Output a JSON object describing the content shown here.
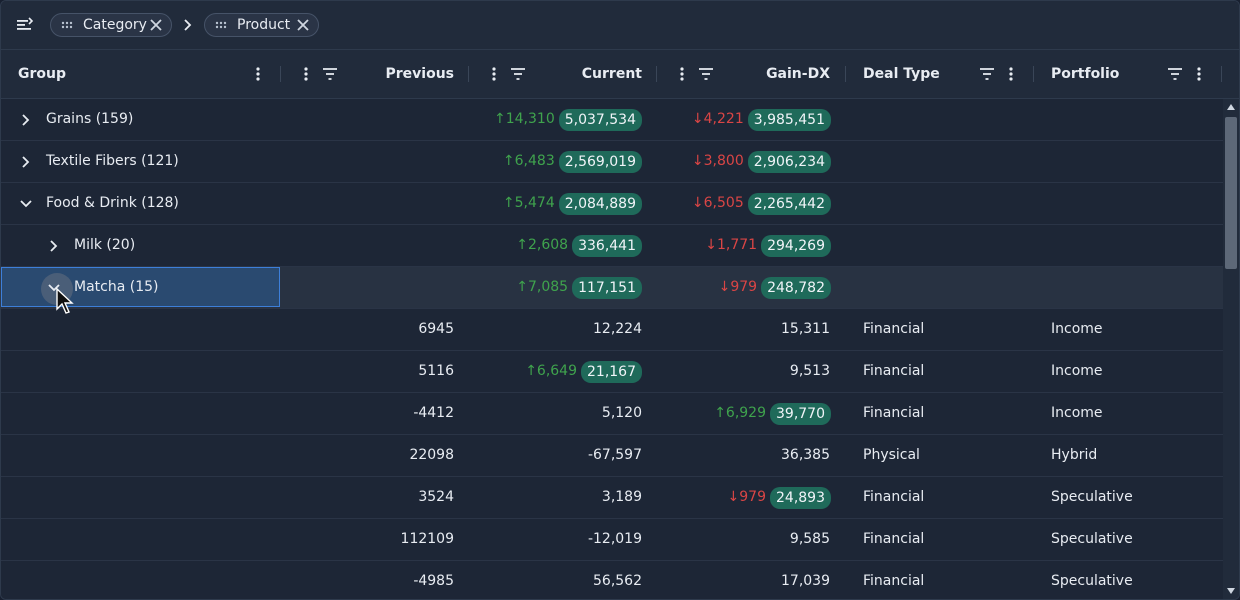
{
  "toolbar": {
    "menu_icon": "group-panel-icon",
    "chips": [
      {
        "label": "Category"
      },
      {
        "label": "Product"
      }
    ]
  },
  "columns": {
    "group": "Group",
    "previous": "Previous",
    "current": "Current",
    "gain": "Gain-DX",
    "deal_type": "Deal Type",
    "portfolio": "Portfolio"
  },
  "group_rows": [
    {
      "label": "Grains (159)",
      "expanded": false,
      "level": 0,
      "cur_delta": "↑14,310",
      "cur_value": "5,037,534",
      "gain_delta": "↓4,221",
      "gain_value": "3,985,451"
    },
    {
      "label": "Textile Fibers (121)",
      "expanded": false,
      "level": 0,
      "cur_delta": "↑6,483",
      "cur_value": "2,569,019",
      "gain_delta": "↓3,800",
      "gain_value": "2,906,234"
    },
    {
      "label": "Food & Drink (128)",
      "expanded": true,
      "level": 0,
      "cur_delta": "↑5,474",
      "cur_value": "2,084,889",
      "gain_delta": "↓6,505",
      "gain_value": "2,265,442"
    },
    {
      "label": "Milk (20)",
      "expanded": false,
      "level": 1,
      "cur_delta": "↑2,608",
      "cur_value": "336,441",
      "gain_delta": "↓1,771",
      "gain_value": "294,269"
    },
    {
      "label": "Matcha (15)",
      "expanded": true,
      "level": 1,
      "cur_delta": "↑7,085",
      "cur_value": "117,151",
      "gain_delta": "↓979",
      "gain_value": "248,782"
    }
  ],
  "leaf_rows": [
    {
      "previous": "6945",
      "cur_delta": "",
      "current": "12,224",
      "gain_delta": "",
      "gain": "15,311",
      "deal_type": "Financial",
      "portfolio": "Income"
    },
    {
      "previous": "5116",
      "cur_delta": "↑6,649",
      "current": "21,167",
      "gain_delta": "",
      "gain": "9,513",
      "deal_type": "Financial",
      "portfolio": "Income"
    },
    {
      "previous": "-4412",
      "cur_delta": "",
      "current": "5,120",
      "gain_delta": "↑6,929",
      "gain": "39,770",
      "deal_type": "Financial",
      "portfolio": "Income"
    },
    {
      "previous": "22098",
      "cur_delta": "",
      "current": "-67,597",
      "gain_delta": "",
      "gain": "36,385",
      "deal_type": "Physical",
      "portfolio": "Hybrid"
    },
    {
      "previous": "3524",
      "cur_delta": "",
      "current": "3,189",
      "gain_delta": "↓979",
      "gain": "24,893",
      "deal_type": "Financial",
      "portfolio": "Speculative"
    },
    {
      "previous": "112109",
      "cur_delta": "",
      "current": "-12,019",
      "gain_delta": "",
      "gain": "9,585",
      "deal_type": "Financial",
      "portfolio": "Speculative"
    },
    {
      "previous": "-4985",
      "cur_delta": "",
      "current": "56,562",
      "gain_delta": "",
      "gain": "17,039",
      "deal_type": "Financial",
      "portfolio": "Speculative"
    }
  ],
  "colors": {
    "up": "#3fa34d",
    "down": "#d94545",
    "pill": "#1f6a5a",
    "selection": "#3d7fd9"
  }
}
